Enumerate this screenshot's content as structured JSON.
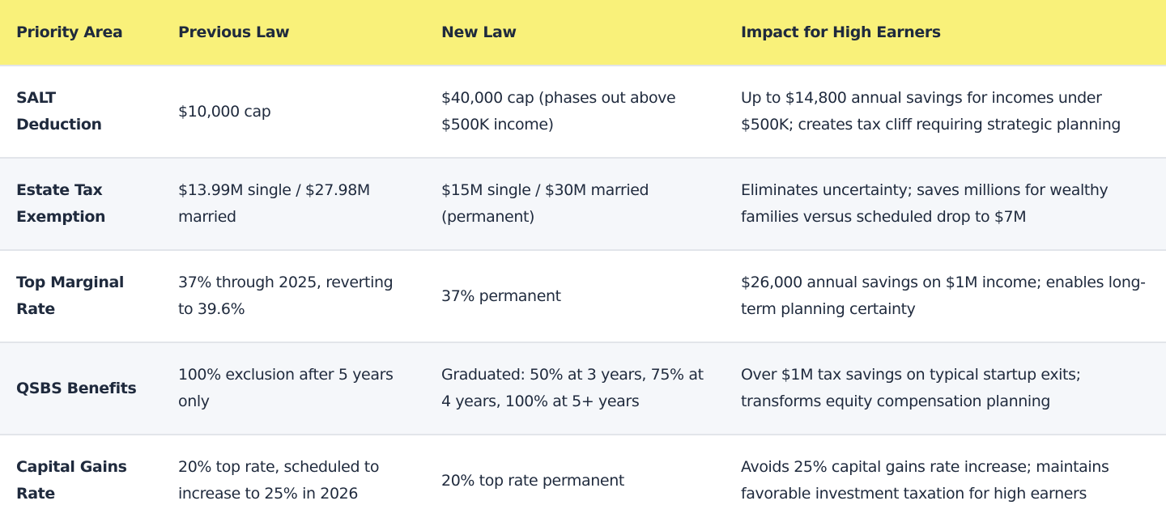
{
  "table": {
    "header": [
      "Priority Area",
      "Previous Law",
      "New Law",
      "Impact for High Earners"
    ],
    "rows": [
      [
        "SALT Deduction",
        "$10,000 cap",
        "$40,000 cap (phases out above $500K income)",
        "Up to $14,800 annual savings for incomes under $500K; creates tax cliff requiring strategic planning"
      ],
      [
        "Estate Tax Exemption",
        "$13.99M single / $27.98M married",
        "$15M single / $30M married (permanent)",
        "Eliminates uncertainty; saves millions for wealthy families versus scheduled drop to $7M"
      ],
      [
        "Top Marginal Rate",
        "37% through 2025, reverting to 39.6%",
        "37% permanent",
        "$26,000 annual savings on $1M income; enables long-term planning certainty"
      ],
      [
        "QSBS Benefits",
        "100% exclusion after 5 years only",
        "Graduated: 50% at 3 years, 75% at 4 years, 100% at 5+ years",
        "Over $1M tax savings on typical startup exits; transforms equity compensation planning"
      ],
      [
        "Capital Gains Rate",
        "20% top rate, scheduled to increase to 25% in 2026",
        "20% top rate permanent",
        "Avoids 25% capital gains rate increase; maintains favorable investment taxation for high earners"
      ]
    ]
  }
}
